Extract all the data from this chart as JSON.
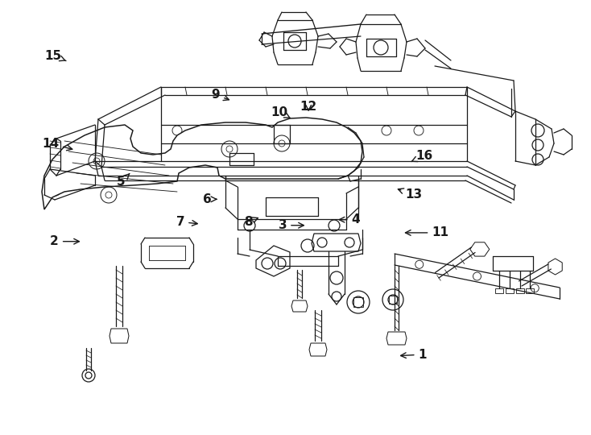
{
  "bg_color": "#ffffff",
  "line_color": "#1a1a1a",
  "lw": 0.9,
  "label_data": [
    [
      1,
      0.715,
      0.815,
      0.672,
      0.818
    ],
    [
      2,
      0.092,
      0.555,
      0.14,
      0.555
    ],
    [
      3,
      0.478,
      0.518,
      0.52,
      0.518
    ],
    [
      4,
      0.602,
      0.505,
      0.568,
      0.505
    ],
    [
      5,
      0.205,
      0.418,
      0.22,
      0.398
    ],
    [
      6,
      0.35,
      0.458,
      0.372,
      0.458
    ],
    [
      7,
      0.305,
      0.51,
      0.34,
      0.515
    ],
    [
      8,
      0.42,
      0.51,
      0.442,
      0.498
    ],
    [
      9,
      0.365,
      0.218,
      0.393,
      0.232
    ],
    [
      10,
      0.473,
      0.258,
      0.492,
      0.272
    ],
    [
      11,
      0.745,
      0.535,
      0.68,
      0.535
    ],
    [
      12,
      0.522,
      0.245,
      0.522,
      0.262
    ],
    [
      13,
      0.7,
      0.448,
      0.668,
      0.432
    ],
    [
      14,
      0.085,
      0.33,
      0.128,
      0.345
    ],
    [
      15,
      0.09,
      0.128,
      0.112,
      0.14
    ],
    [
      16,
      0.718,
      0.358,
      0.695,
      0.372
    ]
  ]
}
